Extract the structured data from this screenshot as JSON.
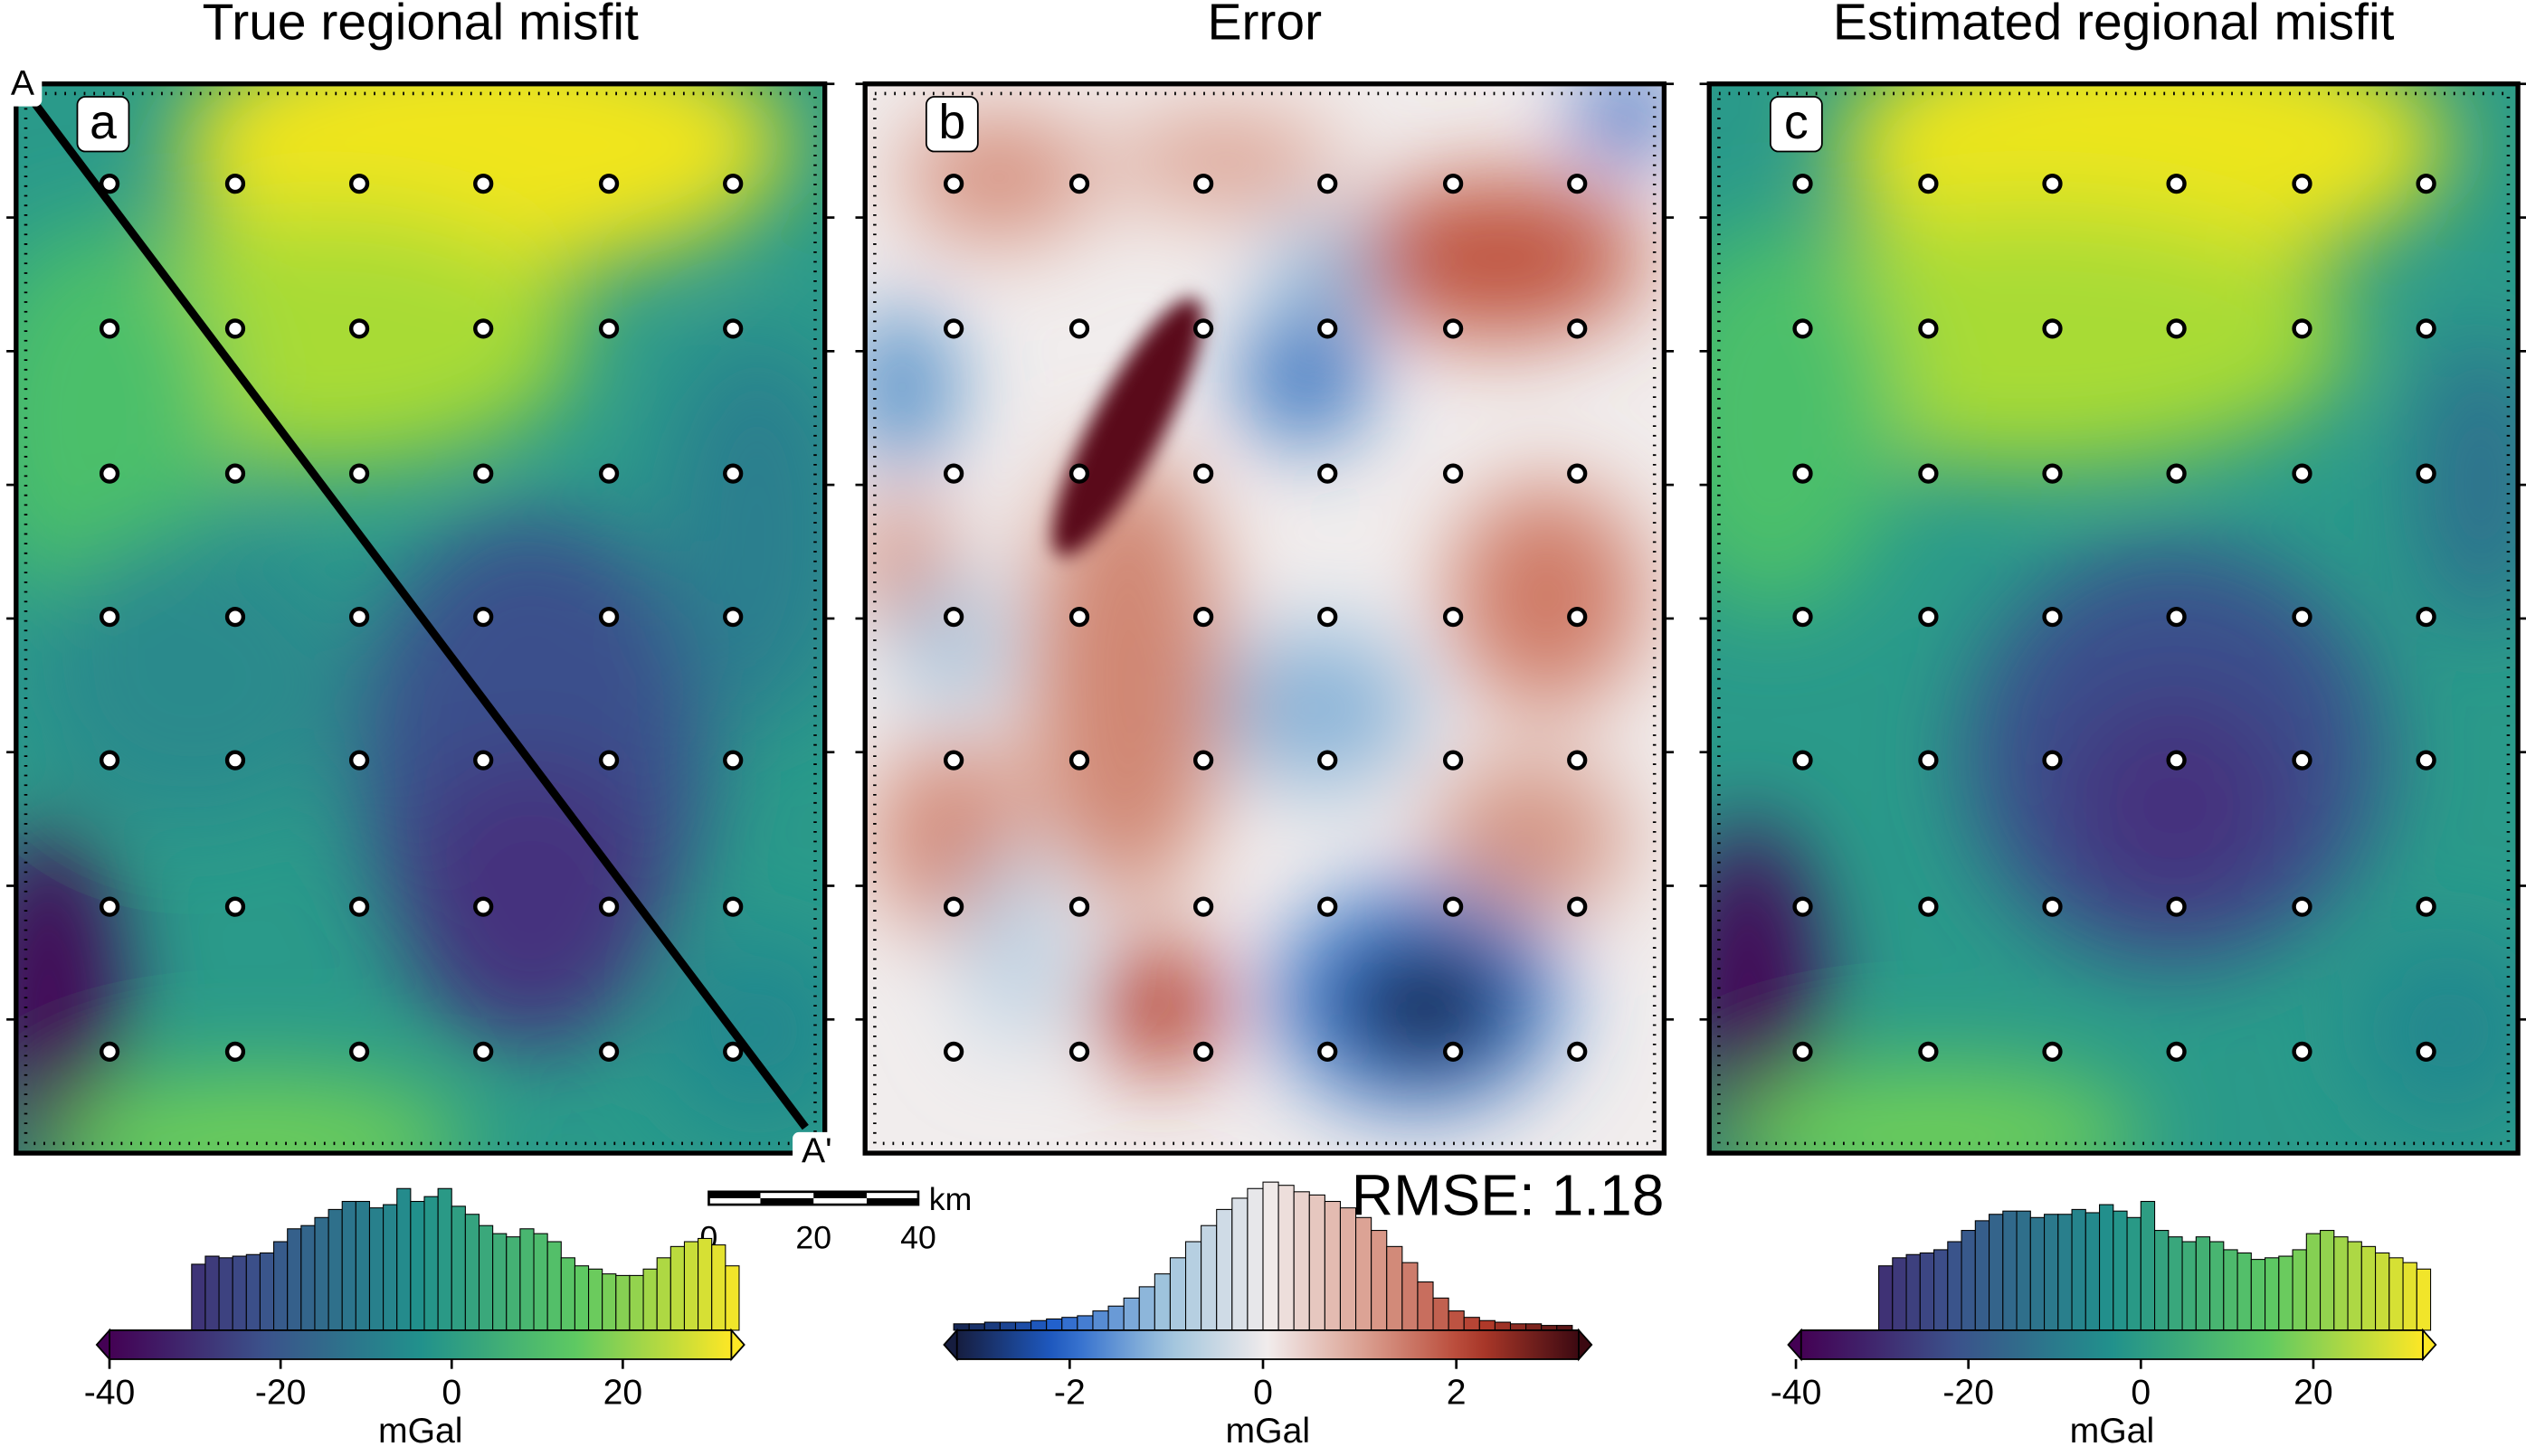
{
  "panels": [
    {
      "title": "True regional misfit",
      "label": "a"
    },
    {
      "title": "Error",
      "label": "b"
    },
    {
      "title": "Estimated regional misfit",
      "label": "c"
    }
  ],
  "profile": {
    "start": "A",
    "end": "A'"
  },
  "scale_bar": {
    "unit": "km",
    "ticks": [
      0,
      20,
      40
    ]
  },
  "annotation": "RMSE: 1.18",
  "chart_data": [
    {
      "type": "histogram",
      "colormap": "viridis",
      "xlabel": "mGal",
      "xlim": [
        -41.5,
        34.2
      ],
      "xticks": [
        -40,
        -20,
        0,
        20
      ],
      "ylim": [
        0,
        100
      ],
      "bins": [
        -30.4,
        -28.8,
        -27.2,
        -25.6,
        -24,
        -22.4,
        -20.8,
        -19.2,
        -17.6,
        -16,
        -14.4,
        -12.8,
        -11.2,
        -9.6,
        -8,
        -6.4,
        -4.8,
        -3.2,
        -1.6,
        0,
        1.6,
        3.2,
        4.8,
        6.4,
        8,
        9.6,
        11.2,
        12.8,
        14.4,
        16,
        17.6,
        19.2,
        20.8,
        22.4,
        24,
        25.6,
        27.2,
        28.8,
        30.4,
        32,
        33.6
      ],
      "counts": [
        41,
        46,
        45,
        46,
        47,
        48,
        55,
        63,
        65,
        70,
        75,
        80,
        80,
        76,
        78,
        88,
        80,
        83,
        88,
        77,
        72,
        65,
        60,
        58,
        63,
        60,
        55,
        45,
        40,
        38,
        35,
        34,
        34,
        38,
        45,
        52,
        55,
        57,
        53,
        40
      ]
    },
    {
      "type": "histogram",
      "colormap": "balance",
      "xlabel": "mGal",
      "xlim": [
        -3.3,
        3.4
      ],
      "xticks": [
        -2,
        0,
        2
      ],
      "ylim": [
        0,
        100
      ],
      "bins": [
        -3.2,
        -3.04,
        -2.88,
        -2.72,
        -2.56,
        -2.4,
        -2.24,
        -2.08,
        -1.92,
        -1.76,
        -1.6,
        -1.44,
        -1.28,
        -1.12,
        -0.96,
        -0.8,
        -0.64,
        -0.48,
        -0.32,
        -0.16,
        0,
        0.16,
        0.32,
        0.48,
        0.64,
        0.8,
        0.96,
        1.12,
        1.28,
        1.44,
        1.6,
        1.76,
        1.92,
        2.08,
        2.24,
        2.4,
        2.56,
        2.72,
        2.88,
        3.04,
        3.2
      ],
      "counts": [
        4,
        4,
        5,
        5,
        5,
        6,
        7,
        8,
        9,
        12,
        15,
        20,
        27,
        35,
        45,
        55,
        65,
        75,
        82,
        88,
        92,
        90,
        86,
        84,
        80,
        76,
        70,
        62,
        52,
        42,
        30,
        20,
        12,
        8,
        6,
        5,
        4,
        4,
        3,
        3
      ]
    },
    {
      "type": "histogram",
      "colormap": "viridis",
      "xlabel": "mGal",
      "xlim": [
        -40.9,
        34.2
      ],
      "xticks": [
        -40,
        -20,
        0,
        20
      ],
      "ylim": [
        0,
        100
      ],
      "bins": [
        -30.4,
        -28.8,
        -27.2,
        -25.6,
        -24,
        -22.4,
        -20.8,
        -19.2,
        -17.6,
        -16,
        -14.4,
        -12.8,
        -11.2,
        -9.6,
        -8,
        -6.4,
        -4.8,
        -3.2,
        -1.6,
        0,
        1.6,
        3.2,
        4.8,
        6.4,
        8,
        9.6,
        11.2,
        12.8,
        14.4,
        16,
        17.6,
        19.2,
        20.8,
        22.4,
        24,
        25.6,
        27.2,
        28.8,
        30.4,
        32,
        33.6
      ],
      "counts": [
        40,
        45,
        47,
        48,
        50,
        55,
        62,
        68,
        72,
        74,
        74,
        70,
        72,
        72,
        75,
        73,
        78,
        74,
        70,
        80,
        62,
        58,
        55,
        58,
        55,
        50,
        48,
        44,
        45,
        46,
        50,
        60,
        62,
        58,
        55,
        52,
        48,
        45,
        42,
        38
      ]
    }
  ]
}
